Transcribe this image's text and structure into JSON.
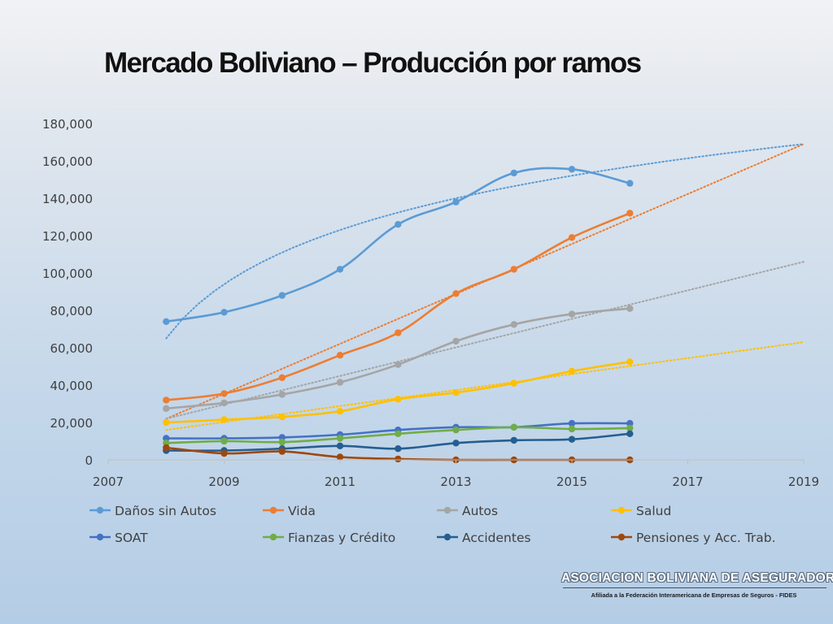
{
  "title": "Mercado Boliviano – Producción por ramos",
  "footer": {
    "organization": "ASOCIACION BOLIVIANA DE ASEGURADORES",
    "affiliation": "Afiliada a la Federación Interamericana de Empresas de Seguros - FIDES"
  },
  "chart_data": {
    "type": "line",
    "title": "",
    "xlabel": "",
    "ylabel": "",
    "xlim": [
      2007,
      2019
    ],
    "ylim": [
      0,
      180000
    ],
    "x_ticks": [
      2007,
      2009,
      2011,
      2013,
      2015,
      2017,
      2019
    ],
    "x_tick_labels": [
      "2007",
      "2009",
      "2011",
      "2013",
      "2015",
      "2017",
      "2019"
    ],
    "y_ticks": [
      0,
      20000,
      40000,
      60000,
      80000,
      100000,
      120000,
      140000,
      160000,
      180000
    ],
    "y_tick_labels": [
      "0",
      "20,000",
      "40,000",
      "60,000",
      "80,000",
      "100,000",
      "120,000",
      "140,000",
      "160,000",
      "180,000"
    ],
    "grid": false,
    "legend_position": "bottom",
    "smooth_lines": true,
    "trendlines": "dotted, one per series",
    "x": [
      2008,
      2009,
      2010,
      2011,
      2012,
      2013,
      2014,
      2015,
      2016
    ],
    "series": [
      {
        "name": "Daños sin Autos",
        "color": "#5b9bd5",
        "values": [
          74000,
          79000,
          88000,
          102000,
          126000,
          138000,
          153500,
          155500,
          148000
        ],
        "trend": {
          "type": "logarithmic",
          "x": [
            2008,
            2019
          ],
          "y": [
            65000,
            169000
          ]
        }
      },
      {
        "name": "Vida",
        "color": "#ed7d31",
        "values": [
          32000,
          35500,
          44000,
          56000,
          68000,
          89000,
          102000,
          119000,
          132000
        ],
        "trend": {
          "type": "linear",
          "x": [
            2008,
            2019
          ],
          "y": [
            22000,
            169000
          ]
        }
      },
      {
        "name": "Autos",
        "color": "#a5a5a5",
        "values": [
          27500,
          30500,
          35000,
          41500,
          51000,
          63500,
          72500,
          78000,
          81000
        ],
        "trend": {
          "type": "linear",
          "x": [
            2008,
            2019
          ],
          "y": [
            22000,
            106000
          ]
        }
      },
      {
        "name": "Salud",
        "color": "#ffc000",
        "values": [
          20000,
          21500,
          23000,
          26000,
          32500,
          36000,
          41000,
          47500,
          52500
        ],
        "trend": {
          "type": "linear",
          "x": [
            2008,
            2019
          ],
          "y": [
            16000,
            63000
          ]
        }
      },
      {
        "name": "SOAT",
        "color": "#4472c4",
        "values": [
          11500,
          11500,
          12000,
          13500,
          16000,
          17500,
          17500,
          19500,
          19500
        ],
        "trend": null
      },
      {
        "name": "Fianzas y Crédito",
        "color": "#70ad47",
        "values": [
          9000,
          10000,
          9500,
          11500,
          14000,
          16000,
          17500,
          16500,
          17000
        ],
        "trend": null
      },
      {
        "name": "Accidentes",
        "color": "#255e91",
        "values": [
          5000,
          5000,
          6000,
          7500,
          6000,
          9000,
          10500,
          11000,
          14000
        ],
        "trend": null
      },
      {
        "name": "Pensiones y Acc. Trab.",
        "color": "#9e480e",
        "values": [
          6500,
          3500,
          4500,
          1500,
          500,
          0,
          0,
          0,
          0
        ],
        "trend": null
      }
    ]
  }
}
